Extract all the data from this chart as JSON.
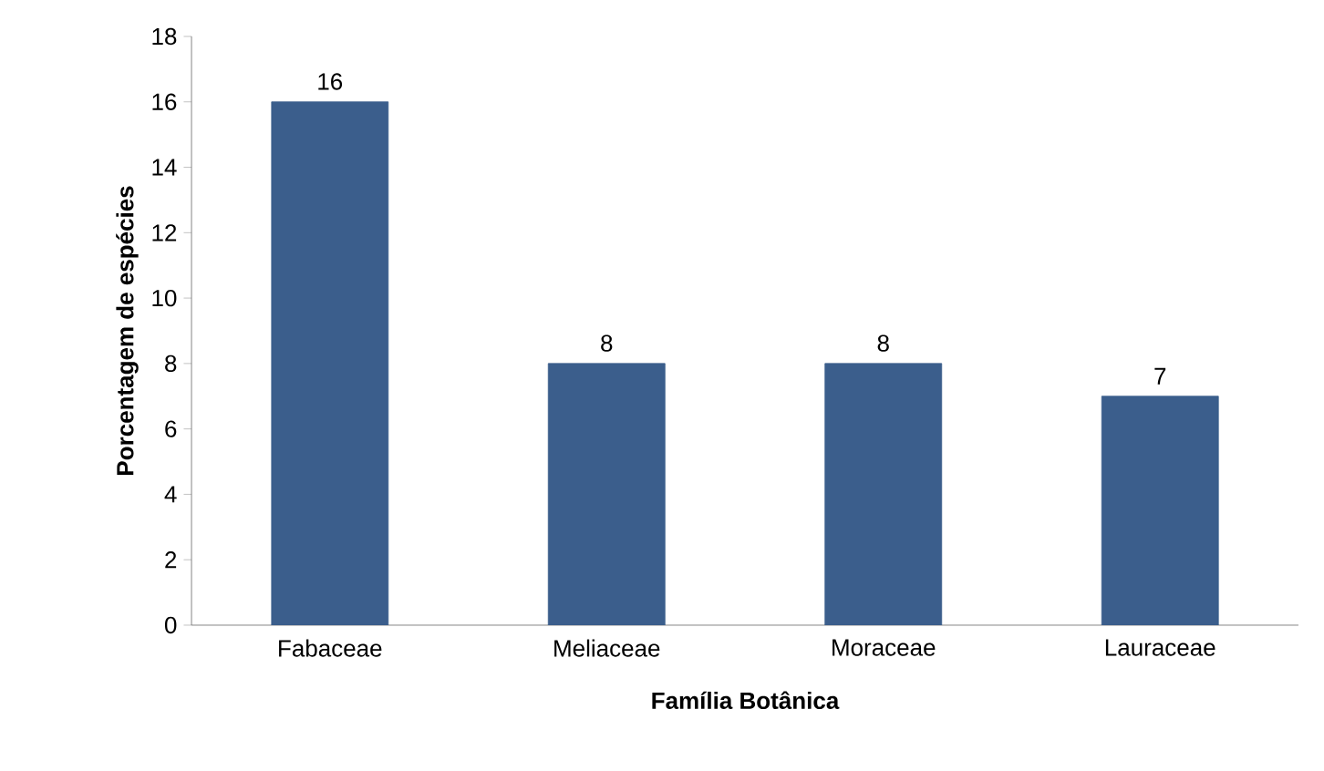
{
  "chart_data": {
    "type": "bar",
    "xlabel": "Família Botânica",
    "ylabel": "Porcentagem de espécies",
    "categories": [
      "Fabaceae",
      "Meliaceae",
      "Moraceae",
      "Lauraceae"
    ],
    "values": [
      16,
      8,
      8,
      7
    ],
    "color": "#3b5e8c",
    "ylim": [
      0,
      18
    ],
    "yticks": [
      0,
      2,
      4,
      6,
      8,
      10,
      12,
      14,
      16,
      18
    ],
    "data_labels": true
  }
}
